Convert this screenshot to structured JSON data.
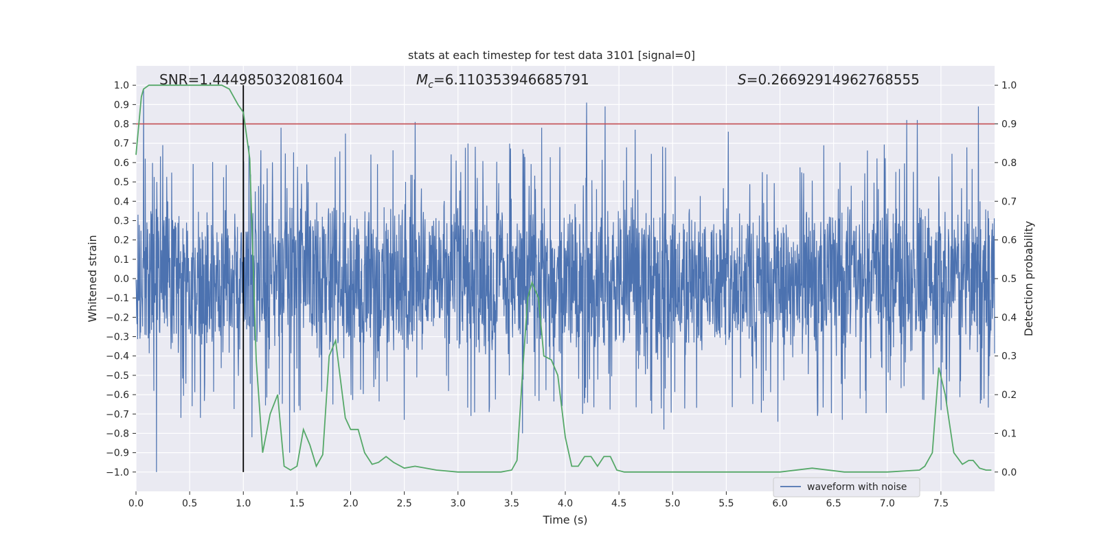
{
  "chart_data": {
    "type": "line",
    "title": "stats at each timestep for test data 3101 [signal=0]",
    "xlabel": "Time (s)",
    "ylabel_left": "Whitened strain",
    "ylabel_right": "Detection probability",
    "xlim": [
      0.0,
      8.0
    ],
    "ylim_left": [
      -1.1,
      1.1
    ],
    "ylim_right": [
      -0.05,
      1.05
    ],
    "x_ticks": [
      "0.0",
      "0.5",
      "1.0",
      "1.5",
      "2.0",
      "2.5",
      "3.0",
      "3.5",
      "4.0",
      "4.5",
      "5.0",
      "5.5",
      "6.0",
      "6.5",
      "7.0",
      "7.5"
    ],
    "y_left_ticks": [
      "1.0",
      "0.9",
      "0.8",
      "0.7",
      "0.6",
      "0.5",
      "0.4",
      "0.3",
      "0.2",
      "0.1",
      "0.0",
      "−0.1",
      "−0.2",
      "−0.3",
      "−0.4",
      "−0.5",
      "−0.6",
      "−0.7",
      "−0.8",
      "−0.9",
      "−1.0"
    ],
    "y_right_ticks": [
      "1.0",
      "0.9",
      "0.8",
      "0.7",
      "0.6",
      "0.5",
      "0.4",
      "0.3",
      "0.2",
      "0.1",
      "0.0"
    ],
    "annotations": {
      "snr": "SNR=1.444985032081604",
      "mc_symbol": "M",
      "mc_sub": "c",
      "mc_value": "=6.110353946685791",
      "s_symbol": "S",
      "s_value": "=0.26692914962768555"
    },
    "threshold": 0.9,
    "vline_x": 1.0,
    "legend": {
      "position": "lower-right",
      "entries": [
        "waveform with noise"
      ]
    },
    "colors": {
      "waveform": "#4c72b0",
      "probability": "#55a868",
      "threshold": "#c44e52",
      "vline": "#000000",
      "background": "#eaeaf2",
      "grid": "#ffffff"
    },
    "waveform_envelope": {
      "x": [
        0.0,
        0.5,
        1.0,
        1.5,
        2.0,
        2.5,
        3.0,
        3.5,
        4.0,
        4.5,
        5.0,
        5.5,
        6.0,
        6.5,
        7.0,
        7.5,
        8.0
      ],
      "typical_amplitude": 0.4,
      "peak_samples": [
        {
          "x": 0.07,
          "y": 0.98
        },
        {
          "x": 0.19,
          "y": -1.0
        },
        {
          "x": 0.25,
          "y": 0.69
        },
        {
          "x": 0.42,
          "y": -0.72
        },
        {
          "x": 0.6,
          "y": -0.72
        },
        {
          "x": 1.0,
          "y": 0.47
        },
        {
          "x": 1.08,
          "y": -0.82
        },
        {
          "x": 1.35,
          "y": 0.78
        },
        {
          "x": 1.43,
          "y": -0.9
        },
        {
          "x": 1.95,
          "y": 0.75
        },
        {
          "x": 2.5,
          "y": -0.73
        },
        {
          "x": 2.6,
          "y": 0.81
        },
        {
          "x": 3.12,
          "y": -0.71
        },
        {
          "x": 3.6,
          "y": -0.8
        },
        {
          "x": 3.78,
          "y": 0.78
        },
        {
          "x": 3.95,
          "y": 0.68
        },
        {
          "x": 4.2,
          "y": 0.91
        },
        {
          "x": 4.37,
          "y": 0.89
        },
        {
          "x": 4.65,
          "y": 0.77
        },
        {
          "x": 4.92,
          "y": -0.78
        },
        {
          "x": 5.52,
          "y": 0.76
        },
        {
          "x": 5.98,
          "y": -0.74
        },
        {
          "x": 6.35,
          "y": -0.71
        },
        {
          "x": 6.58,
          "y": -0.73
        },
        {
          "x": 7.18,
          "y": 0.82
        },
        {
          "x": 7.28,
          "y": 0.82
        },
        {
          "x": 7.5,
          "y": -0.68
        },
        {
          "x": 7.85,
          "y": 0.89
        },
        {
          "x": 7.9,
          "y": -0.62
        }
      ]
    },
    "probability_series": {
      "x": [
        0.0,
        0.05,
        0.07,
        0.12,
        0.2,
        0.3,
        0.5,
        0.7,
        0.8,
        0.87,
        0.95,
        1.0,
        1.06,
        1.12,
        1.18,
        1.25,
        1.32,
        1.38,
        1.44,
        1.5,
        1.56,
        1.62,
        1.68,
        1.74,
        1.8,
        1.86,
        1.9,
        1.95,
        2.0,
        2.07,
        2.13,
        2.2,
        2.26,
        2.33,
        2.4,
        2.5,
        2.6,
        2.8,
        3.0,
        3.2,
        3.4,
        3.5,
        3.55,
        3.6,
        3.65,
        3.69,
        3.75,
        3.8,
        3.87,
        3.93,
        4.0,
        4.06,
        4.12,
        4.18,
        4.24,
        4.3,
        4.36,
        4.42,
        4.48,
        4.55,
        4.7,
        5.0,
        5.3,
        5.6,
        6.0,
        6.3,
        6.6,
        7.0,
        7.3,
        7.35,
        7.42,
        7.48,
        7.54,
        7.62,
        7.7,
        7.76,
        7.8,
        7.86,
        7.92,
        7.97
      ],
      "y": [
        0.82,
        0.97,
        0.99,
        1.0,
        1.0,
        1.0,
        1.0,
        1.0,
        1.0,
        0.99,
        0.95,
        0.93,
        0.81,
        0.29,
        0.05,
        0.15,
        0.2,
        0.015,
        0.005,
        0.015,
        0.11,
        0.07,
        0.015,
        0.045,
        0.3,
        0.34,
        0.25,
        0.14,
        0.11,
        0.11,
        0.05,
        0.02,
        0.025,
        0.04,
        0.025,
        0.01,
        0.015,
        0.005,
        0.0,
        0.0,
        0.0,
        0.005,
        0.03,
        0.25,
        0.45,
        0.49,
        0.45,
        0.3,
        0.29,
        0.25,
        0.09,
        0.015,
        0.015,
        0.04,
        0.04,
        0.015,
        0.04,
        0.04,
        0.005,
        0.0,
        0.0,
        0.0,
        0.0,
        0.0,
        0.0,
        0.01,
        0.0,
        0.0,
        0.005,
        0.015,
        0.05,
        0.27,
        0.2,
        0.05,
        0.02,
        0.03,
        0.03,
        0.01,
        0.005,
        0.005
      ]
    }
  }
}
